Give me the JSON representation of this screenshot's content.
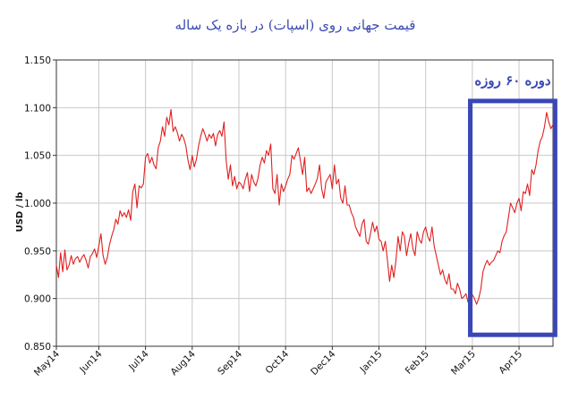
{
  "colors": {
    "series": "#e02020",
    "grid": "#c8c8c8",
    "axis": "#333333",
    "highlight": "#3a47b8",
    "title": "#3b4bb3"
  },
  "chart_data": {
    "type": "line",
    "title": "قیمت جهانی روی (اسپات) در بازه یک ساله",
    "xlabel": "",
    "ylabel": "USD / lb",
    "ylim": [
      0.85,
      1.15
    ],
    "yticks": [
      0.85,
      0.9,
      0.95,
      1.0,
      1.05,
      1.1,
      1.15
    ],
    "ytick_labels": [
      "0.850",
      "0.900",
      "0.950",
      "1.000",
      "1.050",
      "1.100",
      "1.150"
    ],
    "x_tick_labels": [
      "May14",
      "Jun14",
      "Jul14",
      "Aug14",
      "Sep14",
      "Oct14",
      "Dec14",
      "Jan15",
      "Feb15",
      "Mar15",
      "Apr15"
    ],
    "x_tick_index": [
      0,
      20,
      42,
      64,
      86,
      108,
      130,
      152,
      174,
      196,
      218
    ],
    "grid": true,
    "legend": "none",
    "annotation": {
      "label": "دوره ۶۰ روزه",
      "from_index": 195,
      "to_index": 235,
      "y_range": [
        0.862,
        1.107
      ]
    },
    "series": [
      {
        "values": [
          0.935,
          0.922,
          0.948,
          0.928,
          0.951,
          0.93,
          0.935,
          0.945,
          0.936,
          0.942,
          0.944,
          0.938,
          0.943,
          0.946,
          0.94,
          0.932,
          0.944,
          0.947,
          0.952,
          0.943,
          0.955,
          0.968,
          0.945,
          0.936,
          0.943,
          0.956,
          0.965,
          0.972,
          0.983,
          0.978,
          0.992,
          0.986,
          0.99,
          0.985,
          0.993,
          0.982,
          1.012,
          1.02,
          0.995,
          1.018,
          1.016,
          1.02,
          1.048,
          1.052,
          1.042,
          1.048,
          1.04,
          1.036,
          1.058,
          1.065,
          1.08,
          1.07,
          1.09,
          1.082,
          1.098,
          1.075,
          1.08,
          1.074,
          1.065,
          1.072,
          1.068,
          1.06,
          1.045,
          1.035,
          1.05,
          1.038,
          1.046,
          1.06,
          1.07,
          1.078,
          1.072,
          1.065,
          1.072,
          1.068,
          1.073,
          1.06,
          1.072,
          1.076,
          1.07,
          1.085,
          1.045,
          1.025,
          1.04,
          1.018,
          1.028,
          1.015,
          1.022,
          1.02,
          1.015,
          1.025,
          1.032,
          1.012,
          1.03,
          1.022,
          1.018,
          1.026,
          1.04,
          1.048,
          1.042,
          1.055,
          1.05,
          1.062,
          1.015,
          1.01,
          1.03,
          0.998,
          1.02,
          1.012,
          1.018,
          1.025,
          1.03,
          1.05,
          1.046,
          1.052,
          1.058,
          1.044,
          1.03,
          1.048,
          1.012,
          1.016,
          1.01,
          1.015,
          1.02,
          1.026,
          1.04,
          1.015,
          1.005,
          1.022,
          1.026,
          1.03,
          1.015,
          1.04,
          1.02,
          1.025,
          1.005,
          1.0,
          1.018,
          0.998,
          0.998,
          0.99,
          0.985,
          0.975,
          0.97,
          0.965,
          0.978,
          0.983,
          0.96,
          0.957,
          0.968,
          0.98,
          0.97,
          0.976,
          0.962,
          0.96,
          0.95,
          0.96,
          0.94,
          0.918,
          0.935,
          0.922,
          0.94,
          0.965,
          0.95,
          0.97,
          0.965,
          0.945,
          0.958,
          0.968,
          0.952,
          0.945,
          0.97,
          0.962,
          0.958,
          0.97,
          0.975,
          0.965,
          0.96,
          0.975,
          0.955,
          0.945,
          0.935,
          0.925,
          0.93,
          0.92,
          0.915,
          0.926,
          0.91,
          0.91,
          0.905,
          0.916,
          0.91,
          0.9,
          0.902,
          0.905,
          0.896,
          0.908,
          0.904,
          0.9,
          0.894,
          0.9,
          0.91,
          0.928,
          0.935,
          0.94,
          0.935,
          0.938,
          0.94,
          0.945,
          0.95,
          0.948,
          0.96,
          0.966,
          0.97,
          0.985,
          1.0,
          0.995,
          0.99,
          1.0,
          1.005,
          0.992,
          1.012,
          1.01,
          1.02,
          1.008,
          1.035,
          1.03,
          1.04,
          1.055,
          1.065,
          1.07,
          1.08,
          1.095,
          1.085,
          1.078,
          1.082
        ]
      }
    ]
  }
}
